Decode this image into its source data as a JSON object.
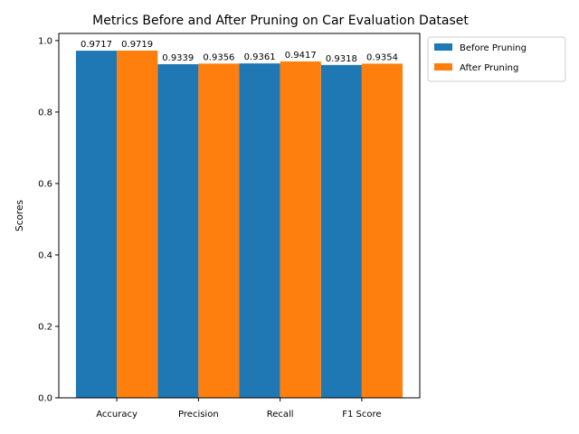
{
  "chart_data": {
    "type": "bar",
    "title": "Metrics Before and After Pruning on Car Evaluation Dataset",
    "xlabel": "",
    "ylabel": "Scores",
    "categories": [
      "Accuracy",
      "Precision",
      "Recall",
      "F1 Score"
    ],
    "series": [
      {
        "name": "Before Pruning",
        "color": "#1f77b4",
        "values": [
          0.9717,
          0.9339,
          0.9361,
          0.9318
        ],
        "labels": [
          "0.9717",
          "0.9339",
          "0.9361",
          "0.9318"
        ]
      },
      {
        "name": "After Pruning",
        "color": "#ff7f0e",
        "values": [
          0.9719,
          0.9356,
          0.9417,
          0.9354
        ],
        "labels": [
          "0.9719",
          "0.9356",
          "0.9417",
          "0.9354"
        ]
      }
    ],
    "ylim": [
      0,
      1.02
    ],
    "yticks": [
      0.0,
      0.2,
      0.4,
      0.6,
      0.8,
      1.0
    ],
    "ytick_labels": [
      "0.0",
      "0.2",
      "0.4",
      "0.6",
      "0.8",
      "1.0"
    ],
    "legend_position": "outside-top-right",
    "grid": false
  }
}
